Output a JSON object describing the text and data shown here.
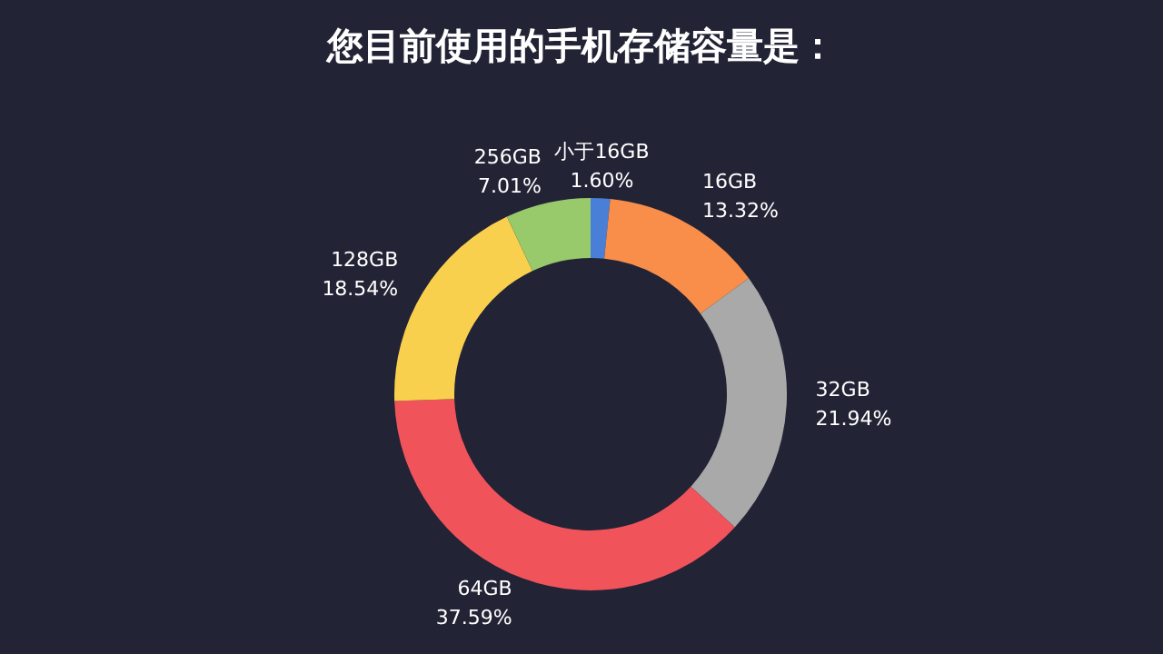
{
  "chart_data": {
    "type": "donut",
    "title": "您目前使用的手机存储容量是：",
    "categories": [
      "小于16GB",
      "16GB",
      "32GB",
      "64GB",
      "128GB",
      "256GB"
    ],
    "values": [
      1.6,
      13.32,
      21.94,
      37.59,
      18.54,
      7.01
    ],
    "value_labels": [
      "1.60%",
      "13.32%",
      "21.94%",
      "37.59%",
      "18.54%",
      "7.01%"
    ],
    "colors": [
      "#4a7fd8",
      "#f98e4a",
      "#a9a9a9",
      "#f0545a",
      "#f9d04d",
      "#98c96a"
    ],
    "legend": false
  }
}
